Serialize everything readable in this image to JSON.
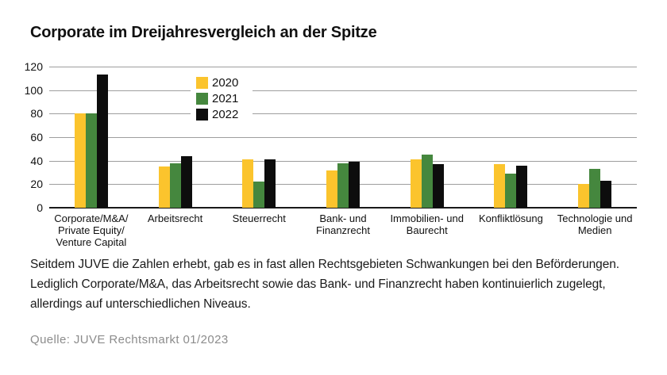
{
  "page": {
    "title": "Corporate im Dreijahresvergleich an der Spitze",
    "description": "Seitdem JUVE die Zahlen erhebt, gab es in fast allen Rechtsgebieten Schwankungen bei den Beförderungen.\nLediglich Corporate/M&A, das Arbeitsrecht sowie das Bank- und Finanzrecht haben kontinuierlich zugelegt,\nallerdings auf unterschiedlichen Niveaus.",
    "source": "Quelle: JUVE Rechtsmarkt 01/2023"
  },
  "colors": {
    "series_2020": "#FBC42D",
    "series_2021": "#45873E",
    "series_2022": "#0D0D0D",
    "gridline": "#9E9E9E",
    "axis": "#1A1A1A",
    "text": "#1A1A1A",
    "source_text": "#8C8C8C"
  },
  "chart_data": {
    "type": "bar",
    "title": "Corporate im Dreijahresvergleich an der Spitze",
    "categories": [
      "Corporate/M&A/\nPrivate Equity/\nVenture Capital",
      "Arbeitsrecht",
      "Steuerrecht",
      "Bank- und\nFinanzrecht",
      "Immobilien- und\nBaurecht",
      "Konfliktlösung",
      "Technologie und\nMedien"
    ],
    "series": [
      {
        "name": "2020",
        "color": "#FBC42D",
        "values": [
          80,
          35,
          41,
          32,
          41,
          37,
          20
        ]
      },
      {
        "name": "2021",
        "color": "#45873E",
        "values": [
          80,
          38,
          22,
          38,
          45,
          29,
          33
        ]
      },
      {
        "name": "2022",
        "color": "#0D0D0D",
        "values": [
          113,
          44,
          41,
          39,
          37,
          36,
          23
        ]
      }
    ],
    "ylim": [
      0,
      120
    ],
    "ytick_step": 20,
    "yticks": [
      0,
      20,
      40,
      60,
      80,
      100,
      120
    ],
    "grid": true,
    "legend_position": "inside-top-left",
    "xlabel": "",
    "ylabel": ""
  }
}
